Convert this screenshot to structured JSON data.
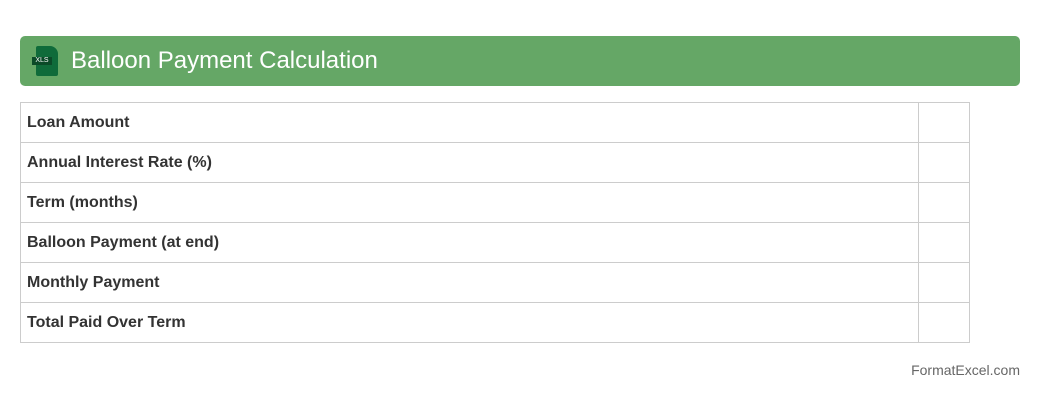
{
  "header": {
    "title": "Balloon Payment Calculation",
    "icon": "xls-file-icon",
    "icon_text": "XLS"
  },
  "rows": [
    {
      "label": "Loan Amount",
      "value": ""
    },
    {
      "label": "Annual Interest Rate (%)",
      "value": ""
    },
    {
      "label": "Term (months)",
      "value": ""
    },
    {
      "label": "Balloon Payment (at end)",
      "value": ""
    },
    {
      "label": "Monthly Payment",
      "value": ""
    },
    {
      "label": "Total Paid Over Term",
      "value": ""
    }
  ],
  "footer": "FormatExcel.com"
}
